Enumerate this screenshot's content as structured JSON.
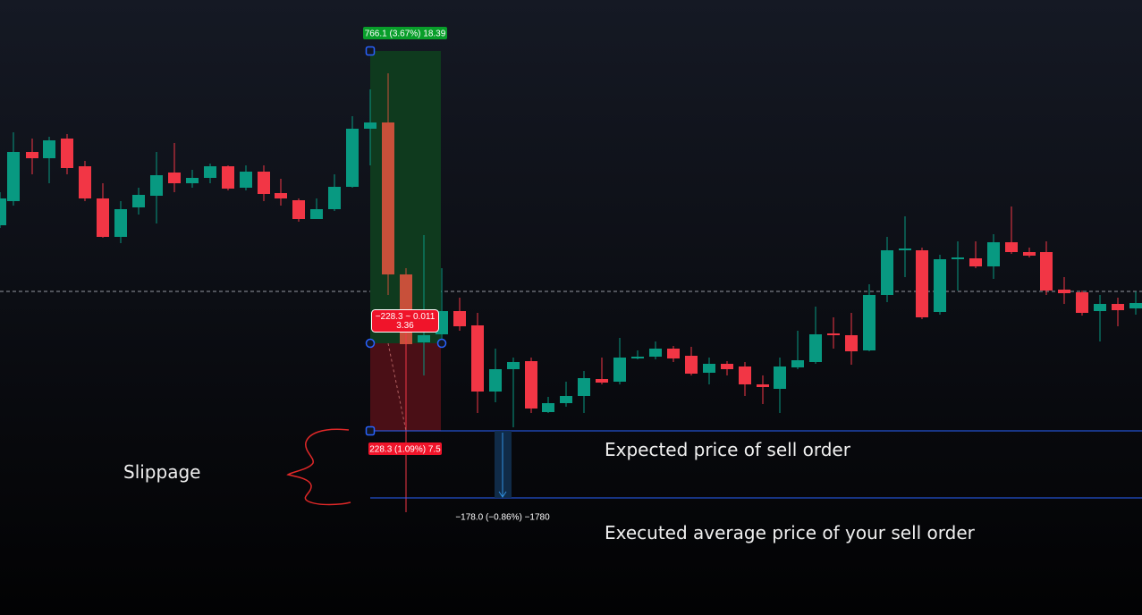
{
  "tool_labels": {
    "target": "766.1 (3.67%) 18.39",
    "position": [
      "−228.3 ~ 0.011",
      "3.36"
    ],
    "stop": "228.3 (1.09%) 7.5",
    "measure": "−178.0 (−0.86%) −1780"
  },
  "annotations": {
    "slippage": "Slippage",
    "expected": "Expected price of sell order",
    "executed": "Executed average price of your sell order"
  }
}
